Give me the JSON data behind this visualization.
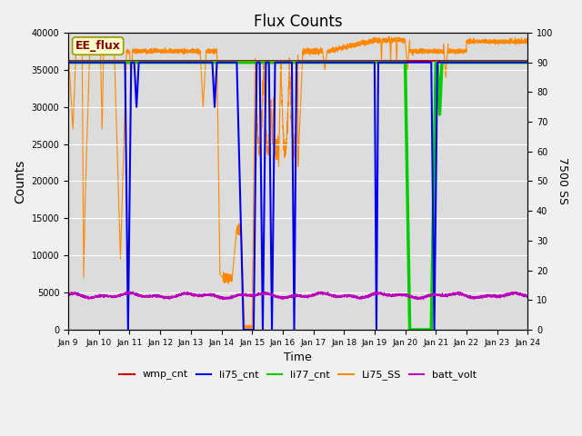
{
  "title": "Flux Counts",
  "xlabel": "Time",
  "ylabel_left": "Counts",
  "ylabel_right": "7500 SS",
  "xlim": [
    9,
    24
  ],
  "ylim_left": [
    0,
    40000
  ],
  "ylim_right": [
    0,
    100
  ],
  "fig_bg": "#f0f0f0",
  "ax_bg": "#dcdcdc",
  "annotation_text": "EE_flux",
  "annotation_box_facecolor": "#ffffcc",
  "annotation_box_edgecolor": "#999900",
  "grid_color": "#ffffff",
  "colors": {
    "wmp_cnt": "#cc0000",
    "li75_cnt": "#0000ee",
    "li77_cnt": "#00cc00",
    "Li75_SS": "#ff8800",
    "batt_volt": "#bb00bb"
  },
  "yticks_left": [
    0,
    5000,
    10000,
    15000,
    20000,
    25000,
    30000,
    35000,
    40000
  ],
  "yticks_right": [
    0,
    10,
    20,
    30,
    40,
    50,
    60,
    70,
    80,
    90,
    100
  ],
  "xtick_days": [
    9,
    10,
    11,
    12,
    13,
    14,
    15,
    16,
    17,
    18,
    19,
    20,
    21,
    22,
    23,
    24
  ],
  "legend_entries": [
    "wmp_cnt",
    "li75_cnt",
    "li77_cnt",
    "Li75_SS",
    "batt_volt"
  ]
}
